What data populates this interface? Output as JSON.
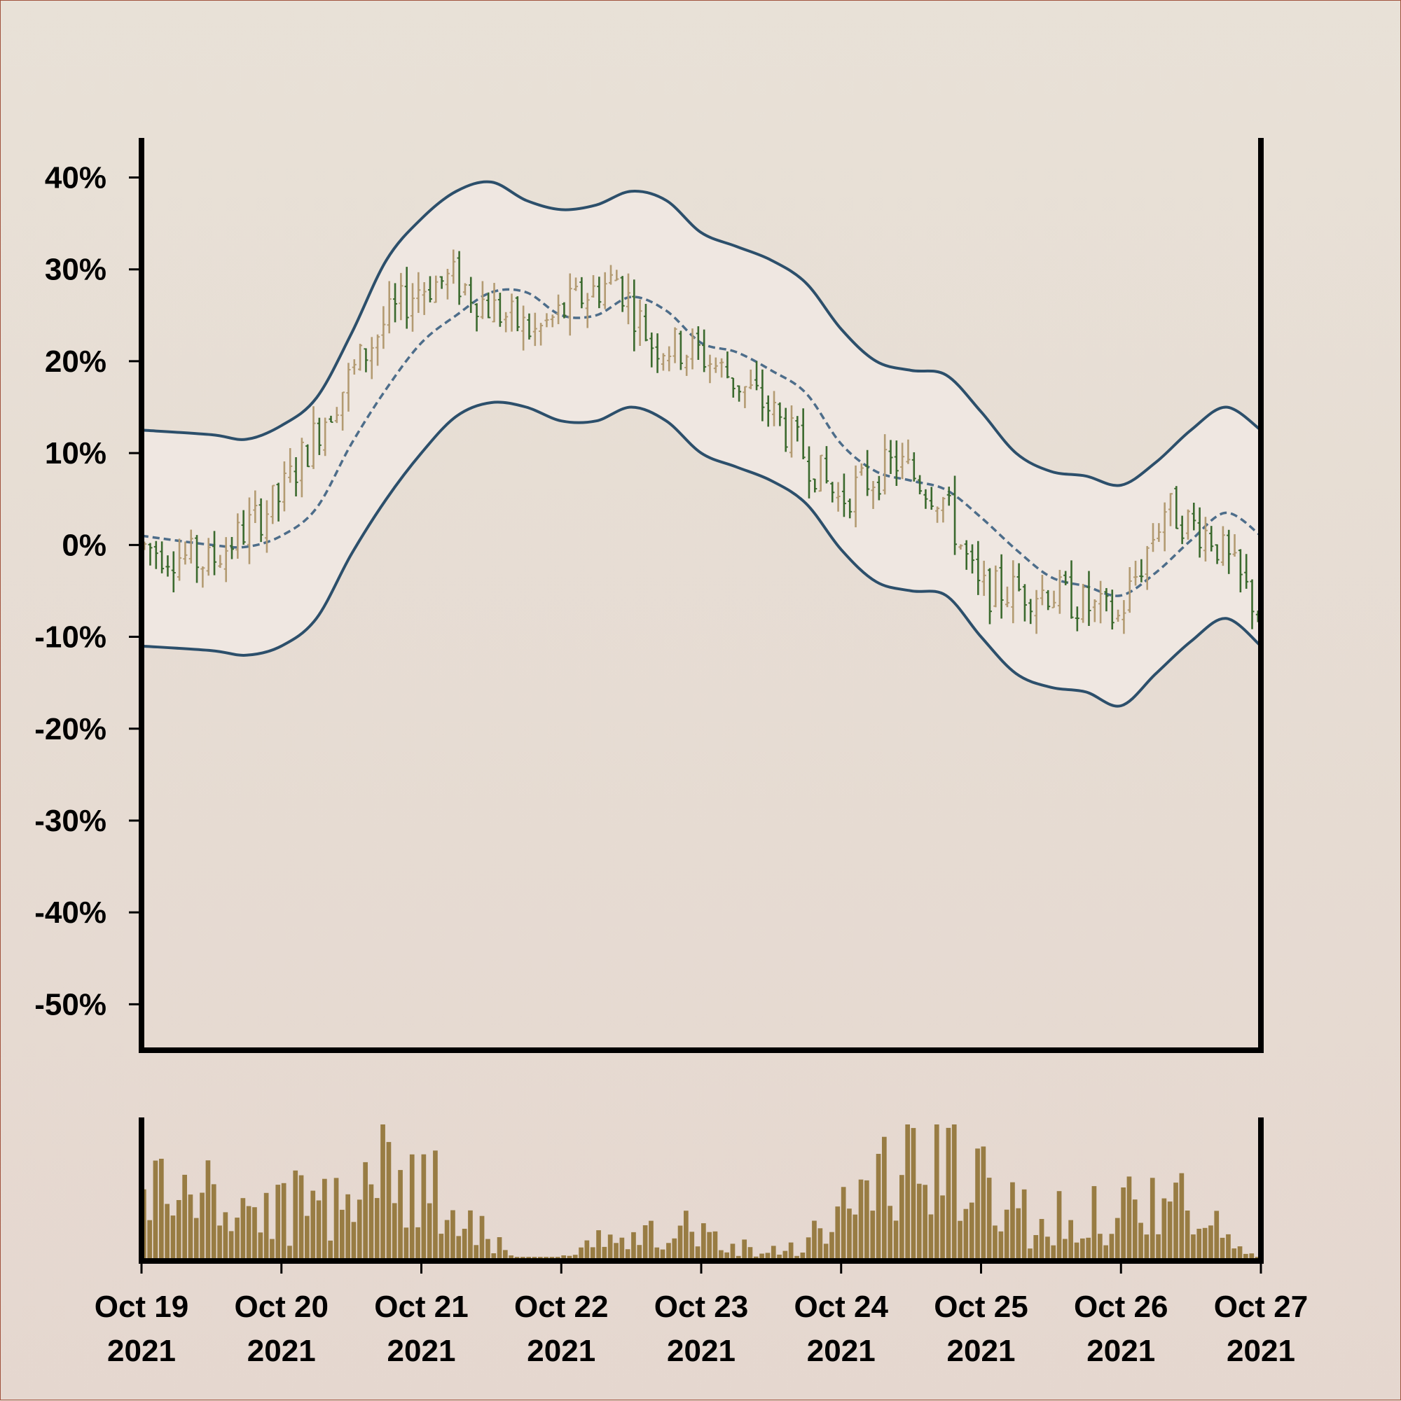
{
  "chart_data": {
    "type": "ohlc",
    "title": "",
    "xlabel": "",
    "ylabel": "",
    "ylim": [
      -55,
      44
    ],
    "y_ticks": [
      "40%",
      "30%",
      "20%",
      "10%",
      "0%",
      "-10%",
      "-20%",
      "-30%",
      "-40%",
      "-50%"
    ],
    "y_tick_values": [
      40,
      30,
      20,
      10,
      0,
      -10,
      -20,
      -30,
      -40,
      -50
    ],
    "x_range": [
      "2021-10-19",
      "2021-10-27"
    ],
    "x_ticks": [
      {
        "date": "2021-10-19",
        "line1": "Oct 19",
        "line2": "2021"
      },
      {
        "date": "2021-10-20",
        "line1": "Oct 20",
        "line2": "2021"
      },
      {
        "date": "2021-10-21",
        "line1": "Oct 21",
        "line2": "2021"
      },
      {
        "date": "2021-10-22",
        "line1": "Oct 22",
        "line2": "2021"
      },
      {
        "date": "2021-10-23",
        "line1": "Oct 23",
        "line2": "2021"
      },
      {
        "date": "2021-10-24",
        "line1": "Oct 24",
        "line2": "2021"
      },
      {
        "date": "2021-10-25",
        "line1": "Oct 25",
        "line2": "2021"
      },
      {
        "date": "2021-10-26",
        "line1": "Oct 26",
        "line2": "2021"
      },
      {
        "date": "2021-10-27",
        "line1": "Oct 27",
        "line2": "2021"
      }
    ],
    "bar_interval_hours": 1,
    "price_path_anchors": [
      [
        "2021-10-19",
        0
      ],
      [
        "2021-10-19 12:00",
        -2
      ],
      [
        "2021-10-20",
        5
      ],
      [
        "2021-10-20 08:00",
        14
      ],
      [
        "2021-10-20 18:00",
        24
      ],
      [
        "2021-10-21",
        28
      ],
      [
        "2021-10-21 06:00",
        29
      ],
      [
        "2021-10-21 12:00",
        26
      ],
      [
        "2021-10-21 20:00",
        23
      ],
      [
        "2021-10-22 04:00",
        27
      ],
      [
        "2021-10-22 10:00",
        29
      ],
      [
        "2021-10-22 16:00",
        22
      ],
      [
        "2021-10-23",
        21
      ],
      [
        "2021-10-23 12:00",
        15
      ],
      [
        "2021-10-24",
        5
      ],
      [
        "2021-10-24 10:00",
        9
      ],
      [
        "2021-10-24 18:00",
        5
      ],
      [
        "2021-10-25",
        -5
      ],
      [
        "2021-10-25 12:00",
        -5
      ],
      [
        "2021-10-26",
        -8
      ],
      [
        "2021-10-26 08:00",
        4
      ],
      [
        "2021-10-26 16:00",
        1
      ],
      [
        "2021-10-27",
        -7
      ]
    ],
    "moving_average": [
      [
        "2021-10-19",
        1
      ],
      [
        "2021-10-19 12:00",
        0
      ],
      [
        "2021-10-19 18:00",
        -0.2
      ],
      [
        "2021-10-20",
        1
      ],
      [
        "2021-10-20 06:00",
        4
      ],
      [
        "2021-10-20 12:00",
        11
      ],
      [
        "2021-10-20 18:00",
        17
      ],
      [
        "2021-10-21",
        22
      ],
      [
        "2021-10-21 06:00",
        25
      ],
      [
        "2021-10-21 12:00",
        27.5
      ],
      [
        "2021-10-21 18:00",
        27.5
      ],
      [
        "2021-10-22",
        25
      ],
      [
        "2021-10-22 06:00",
        25
      ],
      [
        "2021-10-22 12:00",
        27
      ],
      [
        "2021-10-22 18:00",
        25.5
      ],
      [
        "2021-10-23",
        22
      ],
      [
        "2021-10-23 06:00",
        21
      ],
      [
        "2021-10-23 12:00",
        19
      ],
      [
        "2021-10-23 18:00",
        16.5
      ],
      [
        "2021-10-24",
        11
      ],
      [
        "2021-10-24 06:00",
        8
      ],
      [
        "2021-10-24 12:00",
        7
      ],
      [
        "2021-10-24 18:00",
        6
      ],
      [
        "2021-10-25",
        3
      ],
      [
        "2021-10-25 06:00",
        -0.5
      ],
      [
        "2021-10-25 12:00",
        -3.5
      ],
      [
        "2021-10-25 18:00",
        -4.5
      ],
      [
        "2021-10-26",
        -5.5
      ],
      [
        "2021-10-26 06:00",
        -3
      ],
      [
        "2021-10-26 12:00",
        0.5
      ],
      [
        "2021-10-26 18:00",
        3.5
      ],
      [
        "2021-10-27",
        1
      ]
    ],
    "upper_band": [
      [
        "2021-10-19",
        12.5
      ],
      [
        "2021-10-19 12:00",
        12
      ],
      [
        "2021-10-19 18:00",
        11.5
      ],
      [
        "2021-10-20",
        13
      ],
      [
        "2021-10-20 06:00",
        16
      ],
      [
        "2021-10-20 12:00",
        23
      ],
      [
        "2021-10-20 18:00",
        31
      ],
      [
        "2021-10-21",
        35.5
      ],
      [
        "2021-10-21 06:00",
        38.5
      ],
      [
        "2021-10-21 12:00",
        39.5
      ],
      [
        "2021-10-21 18:00",
        37.5
      ],
      [
        "2021-10-22",
        36.5
      ],
      [
        "2021-10-22 06:00",
        37
      ],
      [
        "2021-10-22 12:00",
        38.5
      ],
      [
        "2021-10-22 18:00",
        37.5
      ],
      [
        "2021-10-23",
        34
      ],
      [
        "2021-10-23 06:00",
        32.5
      ],
      [
        "2021-10-23 12:00",
        31
      ],
      [
        "2021-10-23 18:00",
        28.5
      ],
      [
        "2021-10-24",
        23.5
      ],
      [
        "2021-10-24 06:00",
        20
      ],
      [
        "2021-10-24 12:00",
        19
      ],
      [
        "2021-10-24 18:00",
        18.5
      ],
      [
        "2021-10-25",
        14.5
      ],
      [
        "2021-10-25 06:00",
        10
      ],
      [
        "2021-10-25 12:00",
        8
      ],
      [
        "2021-10-25 18:00",
        7.5
      ],
      [
        "2021-10-26",
        6.5
      ],
      [
        "2021-10-26 06:00",
        9
      ],
      [
        "2021-10-26 12:00",
        12.5
      ],
      [
        "2021-10-26 18:00",
        15
      ],
      [
        "2021-10-27",
        12.5
      ]
    ],
    "lower_band": [
      [
        "2021-10-19",
        -11
      ],
      [
        "2021-10-19 12:00",
        -11.5
      ],
      [
        "2021-10-19 18:00",
        -12
      ],
      [
        "2021-10-20",
        -11
      ],
      [
        "2021-10-20 06:00",
        -8
      ],
      [
        "2021-10-20 12:00",
        -1
      ],
      [
        "2021-10-20 18:00",
        5
      ],
      [
        "2021-10-21",
        10
      ],
      [
        "2021-10-21 06:00",
        14
      ],
      [
        "2021-10-21 12:00",
        15.5
      ],
      [
        "2021-10-21 18:00",
        15
      ],
      [
        "2021-10-22",
        13.5
      ],
      [
        "2021-10-22 06:00",
        13.5
      ],
      [
        "2021-10-22 12:00",
        15
      ],
      [
        "2021-10-22 18:00",
        13.5
      ],
      [
        "2021-10-23",
        10
      ],
      [
        "2021-10-23 06:00",
        8.5
      ],
      [
        "2021-10-23 12:00",
        7
      ],
      [
        "2021-10-23 18:00",
        4.5
      ],
      [
        "2021-10-24",
        -0.5
      ],
      [
        "2021-10-24 06:00",
        -4
      ],
      [
        "2021-10-24 12:00",
        -5
      ],
      [
        "2021-10-24 18:00",
        -5.5
      ],
      [
        "2021-10-25",
        -10
      ],
      [
        "2021-10-25 06:00",
        -14
      ],
      [
        "2021-10-25 12:00",
        -15.5
      ],
      [
        "2021-10-25 18:00",
        -16
      ],
      [
        "2021-10-26",
        -17.5
      ],
      [
        "2021-10-26 06:00",
        -14
      ],
      [
        "2021-10-26 12:00",
        -10.5
      ],
      [
        "2021-10-26 18:00",
        -8
      ],
      [
        "2021-10-27",
        -11
      ]
    ],
    "volume_bars": 192,
    "colors": {
      "up": "#b39b72",
      "down": "#3b6a2e",
      "band": "#2c4f6b",
      "ma": "#4d6d8a",
      "band_fill": "#efe7e1",
      "volume": "#987c43",
      "axis": "#000000"
    }
  }
}
